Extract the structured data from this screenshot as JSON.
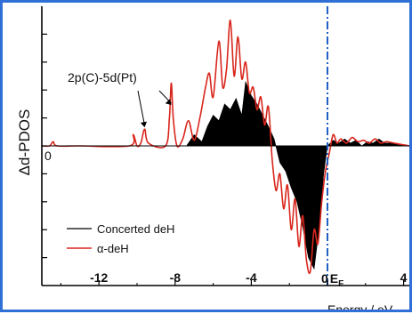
{
  "chart_data": {
    "type": "area",
    "xlabel": "Energy / eV",
    "ylabel": "Δd-PDOS",
    "xlim": [
      -15,
      4.3
    ],
    "ylim": [
      -1.0,
      1.0
    ],
    "x_ticks": [
      -12,
      -8,
      -4,
      0,
      4
    ],
    "x_tick_labels": [
      "-12",
      "-8",
      "-4",
      "0",
      "4"
    ],
    "fermi_label": "E",
    "fermi_subscript": "F",
    "zero_label": "0",
    "fermi_level": 0,
    "annotation": "2p(C)-5d(Pt)",
    "annotation_targets": [
      -9.6,
      -8.2
    ],
    "legend_position": "bottom-left",
    "series": [
      {
        "name": "Concerted deH",
        "style": "filled",
        "color": "#000000",
        "x": [
          -15,
          -7.4,
          -7.0,
          -6.6,
          -6.3,
          -6.0,
          -5.7,
          -5.4,
          -5.1,
          -4.8,
          -4.5,
          -4.3,
          -4.0,
          -3.7,
          -3.4,
          -3.1,
          -2.8,
          -2.5,
          -2.2,
          -1.9,
          -1.6,
          -1.3,
          -1.0,
          -0.7,
          -0.4,
          -0.2,
          0.0,
          0.3,
          0.6,
          0.9,
          1.2,
          1.5,
          1.8,
          2.1,
          2.4,
          2.7,
          3.0,
          3.5,
          4.3
        ],
        "y": [
          0,
          0,
          0.08,
          0.03,
          0.14,
          0.22,
          0.18,
          0.3,
          0.26,
          0.34,
          0.22,
          0.46,
          0.36,
          0.3,
          0.22,
          0.14,
          0.05,
          -0.12,
          -0.18,
          -0.3,
          -0.4,
          -0.58,
          -0.8,
          -0.88,
          -0.55,
          -0.2,
          0,
          0.04,
          0.02,
          0.05,
          0.02,
          0.04,
          0.0,
          0.03,
          0.02,
          0.05,
          0.02,
          0.02,
          0
        ]
      },
      {
        "name": "α-deH",
        "style": "line",
        "color": "#d8261c",
        "x": [
          -15,
          -14.6,
          -14.4,
          -14.2,
          -13.0,
          -10.4,
          -10.2,
          -10.0,
          -9.8,
          -9.6,
          -9.4,
          -8.5,
          -8.3,
          -8.2,
          -8.1,
          -7.9,
          -7.6,
          -7.3,
          -7.0,
          -6.7,
          -6.4,
          -6.2,
          -6.0,
          -5.7,
          -5.5,
          -5.3,
          -5.1,
          -4.9,
          -4.7,
          -4.5,
          -4.3,
          -4.1,
          -3.9,
          -3.7,
          -3.5,
          -3.3,
          -3.1,
          -2.9,
          -2.7,
          -2.5,
          -2.3,
          -2.1,
          -1.9,
          -1.7,
          -1.5,
          -1.3,
          -1.1,
          -0.9,
          -0.7,
          -0.5,
          -0.3,
          -0.1,
          0.1,
          0.3,
          0.5,
          0.7,
          1.0,
          1.3,
          1.6,
          1.9,
          2.2,
          2.5,
          2.8,
          3.1,
          3.5,
          4.3
        ],
        "y": [
          0,
          0,
          0.03,
          0,
          0,
          0,
          0.08,
          0,
          0.02,
          0.12,
          0.02,
          0,
          0.2,
          0.45,
          0.2,
          0,
          0.05,
          0.18,
          0.04,
          0.2,
          0.42,
          0.52,
          0.35,
          0.75,
          0.42,
          0.55,
          0.9,
          0.5,
          0.78,
          0.48,
          0.6,
          0.38,
          0.42,
          0.26,
          0.35,
          0.15,
          0.28,
          -0.1,
          -0.32,
          -0.2,
          -0.45,
          -0.28,
          -0.6,
          -0.38,
          -0.72,
          -0.5,
          -0.82,
          -0.9,
          -0.6,
          -0.7,
          -0.4,
          -0.18,
          -0.05,
          0.08,
          0.02,
          0.05,
          0.02,
          0.06,
          0.03,
          0.04,
          0.02,
          0.05,
          0.02,
          0.03,
          0.02,
          0
        ]
      }
    ]
  }
}
